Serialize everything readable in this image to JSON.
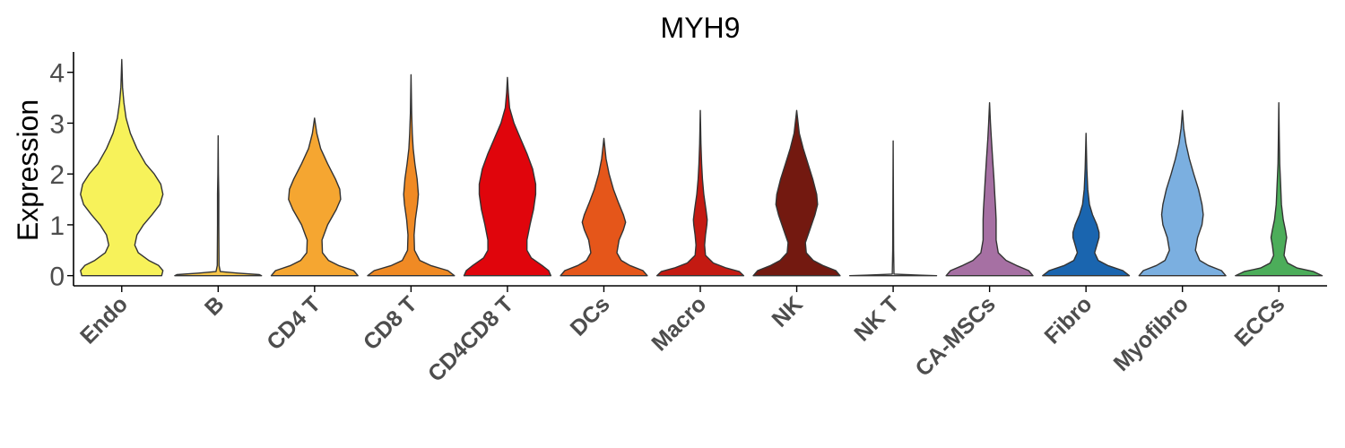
{
  "chart_data": {
    "type": "violin",
    "title": "MYH9",
    "xlabel": "",
    "ylabel": "Expression",
    "ylim": [
      -0.2,
      4.4
    ],
    "yticks": [
      0,
      1,
      2,
      3,
      4
    ],
    "grid": false,
    "legend": "none",
    "categories": [
      "Endo",
      "B",
      "CD4 T",
      "CD8 T",
      "CD4CD8 T",
      "DCs",
      "Macro",
      "NK",
      "NK T",
      "CA-MSCs",
      "Fibro",
      "Myofibro",
      "ECCs"
    ],
    "series": [
      {
        "category": "Endo",
        "color": "#F7F25A",
        "max": 4.25,
        "profile": [
          [
            0,
            0.92
          ],
          [
            0.1,
            0.95
          ],
          [
            0.2,
            0.85
          ],
          [
            0.3,
            0.62
          ],
          [
            0.45,
            0.38
          ],
          [
            0.6,
            0.3
          ],
          [
            0.8,
            0.35
          ],
          [
            1.0,
            0.5
          ],
          [
            1.2,
            0.7
          ],
          [
            1.4,
            0.88
          ],
          [
            1.6,
            0.95
          ],
          [
            1.8,
            0.9
          ],
          [
            2.0,
            0.75
          ],
          [
            2.2,
            0.55
          ],
          [
            2.5,
            0.35
          ],
          [
            2.8,
            0.2
          ],
          [
            3.1,
            0.1
          ],
          [
            3.4,
            0.05
          ],
          [
            3.7,
            0.02
          ],
          [
            4.25,
            0
          ]
        ]
      },
      {
        "category": "B",
        "color": "#F7C64A",
        "max": 2.75,
        "profile": [
          [
            0,
            1.0
          ],
          [
            0.02,
            0.95
          ],
          [
            0.05,
            0.45
          ],
          [
            0.08,
            0.05
          ],
          [
            0.2,
            0.02
          ],
          [
            1.0,
            0.015
          ],
          [
            1.6,
            0.015
          ],
          [
            2.0,
            0.006
          ],
          [
            2.75,
            0
          ]
        ]
      },
      {
        "category": "CD4 T",
        "color": "#F5A631",
        "max": 3.1,
        "profile": [
          [
            0,
            1.0
          ],
          [
            0.1,
            0.9
          ],
          [
            0.2,
            0.55
          ],
          [
            0.3,
            0.32
          ],
          [
            0.45,
            0.18
          ],
          [
            0.7,
            0.17
          ],
          [
            1.0,
            0.3
          ],
          [
            1.3,
            0.5
          ],
          [
            1.5,
            0.6
          ],
          [
            1.7,
            0.58
          ],
          [
            1.9,
            0.48
          ],
          [
            2.2,
            0.3
          ],
          [
            2.5,
            0.14
          ],
          [
            2.8,
            0.05
          ],
          [
            3.1,
            0
          ]
        ]
      },
      {
        "category": "CD8 T",
        "color": "#F08A24",
        "max": 3.95,
        "profile": [
          [
            0,
            1.0
          ],
          [
            0.1,
            0.85
          ],
          [
            0.2,
            0.45
          ],
          [
            0.3,
            0.2
          ],
          [
            0.5,
            0.08
          ],
          [
            0.8,
            0.07
          ],
          [
            1.1,
            0.1
          ],
          [
            1.4,
            0.15
          ],
          [
            1.6,
            0.17
          ],
          [
            1.9,
            0.14
          ],
          [
            2.2,
            0.09
          ],
          [
            2.5,
            0.05
          ],
          [
            2.8,
            0.03
          ],
          [
            3.2,
            0.015
          ],
          [
            3.95,
            0
          ]
        ]
      },
      {
        "category": "CD4CD8 T",
        "color": "#E0050C",
        "max": 3.9,
        "profile": [
          [
            0,
            1.0
          ],
          [
            0.1,
            0.95
          ],
          [
            0.2,
            0.8
          ],
          [
            0.35,
            0.55
          ],
          [
            0.5,
            0.45
          ],
          [
            0.7,
            0.45
          ],
          [
            1.0,
            0.52
          ],
          [
            1.3,
            0.6
          ],
          [
            1.6,
            0.65
          ],
          [
            1.8,
            0.65
          ],
          [
            2.1,
            0.58
          ],
          [
            2.4,
            0.45
          ],
          [
            2.7,
            0.3
          ],
          [
            3.0,
            0.15
          ],
          [
            3.3,
            0.05
          ],
          [
            3.6,
            0.02
          ],
          [
            3.9,
            0
          ]
        ]
      },
      {
        "category": "DCs",
        "color": "#E5561A",
        "max": 2.7,
        "profile": [
          [
            0,
            1.0
          ],
          [
            0.1,
            0.9
          ],
          [
            0.2,
            0.6
          ],
          [
            0.3,
            0.4
          ],
          [
            0.45,
            0.3
          ],
          [
            0.7,
            0.35
          ],
          [
            0.9,
            0.45
          ],
          [
            1.05,
            0.5
          ],
          [
            1.2,
            0.45
          ],
          [
            1.45,
            0.33
          ],
          [
            1.7,
            0.22
          ],
          [
            2.0,
            0.12
          ],
          [
            2.3,
            0.05
          ],
          [
            2.7,
            0
          ]
        ]
      },
      {
        "category": "Macro",
        "color": "#C41A12",
        "max": 3.25,
        "profile": [
          [
            0,
            1.0
          ],
          [
            0.08,
            0.9
          ],
          [
            0.15,
            0.6
          ],
          [
            0.25,
            0.3
          ],
          [
            0.4,
            0.12
          ],
          [
            0.6,
            0.1
          ],
          [
            0.8,
            0.12
          ],
          [
            1.0,
            0.15
          ],
          [
            1.1,
            0.16
          ],
          [
            1.3,
            0.13
          ],
          [
            1.6,
            0.08
          ],
          [
            1.9,
            0.05
          ],
          [
            2.2,
            0.03
          ],
          [
            2.6,
            0.015
          ],
          [
            3.25,
            0
          ]
        ]
      },
      {
        "category": "NK",
        "color": "#731910",
        "max": 3.25,
        "profile": [
          [
            0,
            1.0
          ],
          [
            0.1,
            0.9
          ],
          [
            0.2,
            0.6
          ],
          [
            0.3,
            0.38
          ],
          [
            0.45,
            0.22
          ],
          [
            0.65,
            0.2
          ],
          [
            0.9,
            0.3
          ],
          [
            1.2,
            0.42
          ],
          [
            1.4,
            0.48
          ],
          [
            1.6,
            0.46
          ],
          [
            1.9,
            0.37
          ],
          [
            2.2,
            0.26
          ],
          [
            2.5,
            0.15
          ],
          [
            2.8,
            0.06
          ],
          [
            3.25,
            0
          ]
        ]
      },
      {
        "category": "NK T",
        "color": "#ffffff",
        "max": 2.65,
        "profile": [
          [
            0,
            1.0
          ],
          [
            0.01,
            0.6
          ],
          [
            0.03,
            0.02
          ],
          [
            0.5,
            0.01
          ],
          [
            2.65,
            0
          ]
        ]
      },
      {
        "category": "CA-MSCs",
        "color": "#A670A3",
        "max": 3.4,
        "profile": [
          [
            0,
            1.0
          ],
          [
            0.1,
            0.9
          ],
          [
            0.2,
            0.62
          ],
          [
            0.3,
            0.38
          ],
          [
            0.45,
            0.2
          ],
          [
            0.7,
            0.15
          ],
          [
            0.9,
            0.15
          ],
          [
            1.1,
            0.15
          ],
          [
            1.3,
            0.14
          ],
          [
            1.6,
            0.12
          ],
          [
            1.9,
            0.1
          ],
          [
            2.3,
            0.07
          ],
          [
            2.7,
            0.04
          ],
          [
            3.0,
            0.02
          ],
          [
            3.4,
            0
          ]
        ]
      },
      {
        "category": "Fibro",
        "color": "#1A65AF",
        "max": 2.8,
        "profile": [
          [
            0,
            1.0
          ],
          [
            0.1,
            0.85
          ],
          [
            0.2,
            0.5
          ],
          [
            0.3,
            0.28
          ],
          [
            0.45,
            0.2
          ],
          [
            0.6,
            0.25
          ],
          [
            0.75,
            0.3
          ],
          [
            0.85,
            0.3
          ],
          [
            1.0,
            0.25
          ],
          [
            1.2,
            0.15
          ],
          [
            1.4,
            0.08
          ],
          [
            1.7,
            0.04
          ],
          [
            2.1,
            0.02
          ],
          [
            2.8,
            0
          ]
        ]
      },
      {
        "category": "Myofibro",
        "color": "#7BAFE0",
        "max": 3.25,
        "profile": [
          [
            0,
            1.0
          ],
          [
            0.1,
            0.9
          ],
          [
            0.2,
            0.6
          ],
          [
            0.3,
            0.4
          ],
          [
            0.5,
            0.3
          ],
          [
            0.75,
            0.35
          ],
          [
            1.0,
            0.45
          ],
          [
            1.2,
            0.48
          ],
          [
            1.4,
            0.45
          ],
          [
            1.7,
            0.37
          ],
          [
            2.0,
            0.26
          ],
          [
            2.3,
            0.16
          ],
          [
            2.6,
            0.08
          ],
          [
            2.9,
            0.03
          ],
          [
            3.25,
            0
          ]
        ]
      },
      {
        "category": "ECCs",
        "color": "#4CAD5A",
        "max": 3.4,
        "profile": [
          [
            0,
            1.0
          ],
          [
            0.08,
            0.8
          ],
          [
            0.15,
            0.42
          ],
          [
            0.25,
            0.2
          ],
          [
            0.4,
            0.12
          ],
          [
            0.6,
            0.15
          ],
          [
            0.75,
            0.18
          ],
          [
            0.9,
            0.15
          ],
          [
            1.1,
            0.1
          ],
          [
            1.4,
            0.06
          ],
          [
            1.8,
            0.04
          ],
          [
            2.2,
            0.02
          ],
          [
            2.7,
            0.01
          ],
          [
            3.4,
            0
          ]
        ]
      }
    ]
  }
}
